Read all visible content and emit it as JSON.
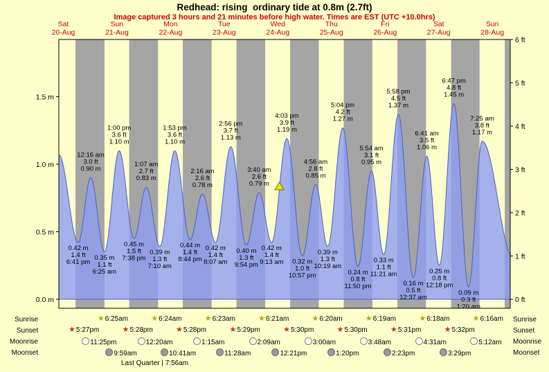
{
  "title": "Redhead: rising  ordinary tide at 0.8m (2.7ft)",
  "subtitle": "Image captured 3 hours and 21 minutes before high water. Times are EST (UTC +10.0hrs)",
  "chart_data": {
    "type": "area",
    "title": "Redhead: rising ordinary tide at 0.8m (2.7ft)",
    "ylim_m": [
      0,
      1.95
    ],
    "grid": false,
    "legend": false,
    "colors": {
      "day_band": "#ffffcc",
      "night_band": "#a5a5a5",
      "tide_fill": "#8d9ef2",
      "tide_stroke": "#4d5fc4",
      "label_red": "#cc0000",
      "marker_yellow": "#e6e600"
    },
    "days": [
      {
        "name": "Sat",
        "date": "20-Aug"
      },
      {
        "name": "Sun",
        "date": "21-Aug"
      },
      {
        "name": "Mon",
        "date": "22-Aug"
      },
      {
        "name": "Tue",
        "date": "23-Aug"
      },
      {
        "name": "Wed",
        "date": "24-Aug"
      },
      {
        "name": "Thu",
        "date": "25-Aug"
      },
      {
        "name": "Fri",
        "date": "26-Aug"
      },
      {
        "name": "Sat",
        "date": "27-Aug"
      },
      {
        "name": "Sun",
        "date": "28-Aug"
      }
    ],
    "y_axis_left": [
      {
        "label": "1.5 m",
        "value": 1.5
      },
      {
        "label": "1.0 m",
        "value": 1.0
      },
      {
        "label": "0.5 m",
        "value": 0.5
      },
      {
        "label": "0.0 m",
        "value": 0.0
      }
    ],
    "y_axis_right": [
      {
        "label": "6 ft",
        "value": 6
      },
      {
        "label": "5 ft",
        "value": 5
      },
      {
        "label": "4 ft",
        "value": 4
      },
      {
        "label": "3 ft",
        "value": 3
      },
      {
        "label": "2 ft",
        "value": 2
      },
      {
        "label": "1 ft",
        "value": 1
      },
      {
        "label": "0 ft",
        "value": 0
      }
    ],
    "extremes": [
      {
        "type": "low",
        "day": 0,
        "time": "6:41 pm",
        "m": "0.42 m",
        "ft": "1.4 ft"
      },
      {
        "type": "high",
        "day": 1,
        "time": "12:16 am",
        "m": "0.90 m",
        "ft": "3.0 ft"
      },
      {
        "type": "low",
        "day": 1,
        "time": "6:25 am",
        "m": "0.35 m",
        "ft": "1.1 ft"
      },
      {
        "type": "high",
        "day": 1,
        "time": "1:00 pm",
        "m": "1.10 m",
        "ft": "3.6 ft"
      },
      {
        "type": "low",
        "day": 1,
        "time": "7:38 pm",
        "m": "0.45 m",
        "ft": "1.5 ft"
      },
      {
        "type": "high",
        "day": 2,
        "time": "1:07 am",
        "m": "0.83 m",
        "ft": "2.7 ft"
      },
      {
        "type": "low",
        "day": 2,
        "time": "7:10 am",
        "m": "0.39 m",
        "ft": "1.3 ft"
      },
      {
        "type": "high",
        "day": 2,
        "time": "1:53 pm",
        "m": "1.10 m",
        "ft": "3.6 ft"
      },
      {
        "type": "low",
        "day": 2,
        "time": "8:44 pm",
        "m": "0.44 m",
        "ft": "1.4 ft"
      },
      {
        "type": "high",
        "day": 3,
        "time": "2:16 am",
        "m": "0.78 m",
        "ft": "2.6 ft"
      },
      {
        "type": "low",
        "day": 3,
        "time": "8:07 am",
        "m": "0.42 m",
        "ft": "1.4 ft"
      },
      {
        "type": "high",
        "day": 3,
        "time": "2:56 pm",
        "m": "1.13 m",
        "ft": "3.7 ft"
      },
      {
        "type": "low",
        "day": 3,
        "time": "9:54 pm",
        "m": "0.40 m",
        "ft": "1.3 ft"
      },
      {
        "type": "high",
        "day": 4,
        "time": "3:40 am",
        "m": "0.79 m",
        "ft": "2.6 ft"
      },
      {
        "type": "low",
        "day": 4,
        "time": "9:13 am",
        "m": "0.42 m",
        "ft": "1.4 ft"
      },
      {
        "type": "high",
        "day": 4,
        "time": "4:03 pm",
        "m": "1.19 m",
        "ft": "3.9 ft"
      },
      {
        "type": "low",
        "day": 4,
        "time": "10:57 pm",
        "m": "0.32 m",
        "ft": "1.0 ft"
      },
      {
        "type": "high",
        "day": 5,
        "time": "4:56 am",
        "m": "0.85 m",
        "ft": "2.8 ft"
      },
      {
        "type": "low",
        "day": 5,
        "time": "10:19 am",
        "m": "0.39 m",
        "ft": "1.3 ft"
      },
      {
        "type": "high",
        "day": 5,
        "time": "5:04 pm",
        "m": "1.27 m",
        "ft": "4.2 ft"
      },
      {
        "type": "low",
        "day": 5,
        "time": "11:50 pm",
        "m": "0.24 m",
        "ft": "0.8 ft"
      },
      {
        "type": "high",
        "day": 6,
        "time": "5:54 am",
        "m": "0.95 m",
        "ft": "3.1 ft"
      },
      {
        "type": "low",
        "day": 6,
        "time": "11:21 am",
        "m": "0.33 m",
        "ft": "1.1 ft"
      },
      {
        "type": "high",
        "day": 6,
        "time": "5:58 pm",
        "m": "1.37 m",
        "ft": "4.5 ft"
      },
      {
        "type": "low",
        "day": 7,
        "time": "12:37 am",
        "m": "0.16 m",
        "ft": "0.5 ft"
      },
      {
        "type": "high",
        "day": 7,
        "time": "6:41 am",
        "m": "1.06 m",
        "ft": "3.5 ft"
      },
      {
        "type": "low",
        "day": 7,
        "time": "12:18 pm",
        "m": "0.25 m",
        "ft": "0.8 ft"
      },
      {
        "type": "high",
        "day": 7,
        "time": "6:47 pm",
        "m": "1.45 m",
        "ft": "4.8 ft"
      },
      {
        "type": "low",
        "day": 8,
        "time": "1:20 am",
        "m": "0.09 m",
        "ft": "0.3 ft"
      },
      {
        "type": "high",
        "day": 8,
        "time": "7:25 am",
        "m": "1.17 m",
        "ft": "3.8 ft"
      }
    ],
    "now_marker": {
      "day": 4,
      "time": "12:42 pm",
      "height_m": 0.8
    },
    "sun_moon": {
      "rows": [
        {
          "key": "sunrise",
          "label": "Sunrise",
          "icon": "sunrise-star",
          "events": [
            {
              "day": 1,
              "time": "6:25am"
            },
            {
              "day": 2,
              "time": "6:24am"
            },
            {
              "day": 3,
              "time": "6:23am"
            },
            {
              "day": 4,
              "time": "6:21am"
            },
            {
              "day": 5,
              "time": "6:20am"
            },
            {
              "day": 6,
              "time": "6:19am"
            },
            {
              "day": 7,
              "time": "6:18am"
            },
            {
              "day": 8,
              "time": "6:16am"
            }
          ]
        },
        {
          "key": "sunset",
          "label": "Sunset",
          "icon": "sunset-star",
          "events": [
            {
              "day": 0,
              "time": "5:27pm"
            },
            {
              "day": 1,
              "time": "5:28pm"
            },
            {
              "day": 2,
              "time": "5:28pm"
            },
            {
              "day": 3,
              "time": "5:29pm"
            },
            {
              "day": 4,
              "time": "5:30pm"
            },
            {
              "day": 5,
              "time": "5:30pm"
            },
            {
              "day": 6,
              "time": "5:31pm"
            },
            {
              "day": 7,
              "time": "5:32pm"
            }
          ]
        },
        {
          "key": "moonrise",
          "label": "Moonrise",
          "icon": "moon-light",
          "events": [
            {
              "day": 0,
              "time": "11:25pm"
            },
            {
              "day": 2,
              "time": "12:20am"
            },
            {
              "day": 3,
              "time": "1:15am"
            },
            {
              "day": 4,
              "time": "2:09am"
            },
            {
              "day": 5,
              "time": "3:00am"
            },
            {
              "day": 6,
              "time": "3:48am"
            },
            {
              "day": 7,
              "time": "4:31am"
            },
            {
              "day": 8,
              "time": "5:12am"
            }
          ]
        },
        {
          "key": "moonset",
          "label": "Moonset",
          "icon": "moon-dark",
          "events": [
            {
              "day": 1,
              "time": "9:59am"
            },
            {
              "day": 2,
              "time": "10:41am"
            },
            {
              "day": 3,
              "time": "11:28am"
            },
            {
              "day": 4,
              "time": "12:21pm"
            },
            {
              "day": 5,
              "time": "1:20pm"
            },
            {
              "day": 6,
              "time": "2:23pm"
            },
            {
              "day": 7,
              "time": "3:29pm"
            }
          ]
        }
      ],
      "moon_phase": "Last Quarter | 7:56am"
    }
  }
}
